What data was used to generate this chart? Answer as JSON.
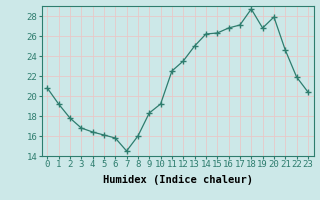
{
  "x": [
    0,
    1,
    2,
    3,
    4,
    5,
    6,
    7,
    8,
    9,
    10,
    11,
    12,
    13,
    14,
    15,
    16,
    17,
    18,
    19,
    20,
    21,
    22,
    23
  ],
  "y": [
    20.8,
    19.2,
    17.8,
    16.8,
    16.4,
    16.1,
    15.8,
    14.5,
    16.0,
    18.3,
    19.2,
    22.5,
    23.5,
    25.0,
    26.2,
    26.3,
    26.8,
    27.1,
    28.7,
    26.8,
    27.9,
    24.6,
    21.9,
    20.4
  ],
  "line_color": "#2e7d6e",
  "marker": "+",
  "marker_size": 4,
  "bg_color": "#cce8e8",
  "grid_color": "#e8c8c8",
  "xlabel": "Humidex (Indice chaleur)",
  "xlim": [
    -0.5,
    23.5
  ],
  "ylim": [
    14,
    29
  ],
  "yticks": [
    14,
    16,
    18,
    20,
    22,
    24,
    26,
    28
  ],
  "xtick_labels": [
    "0",
    "1",
    "2",
    "3",
    "4",
    "5",
    "6",
    "7",
    "8",
    "9",
    "10",
    "11",
    "12",
    "13",
    "14",
    "15",
    "16",
    "17",
    "18",
    "19",
    "20",
    "21",
    "22",
    "23"
  ],
  "xlabel_fontsize": 7.5,
  "tick_fontsize": 6.5
}
